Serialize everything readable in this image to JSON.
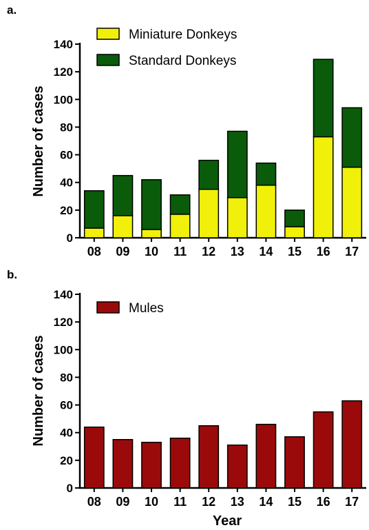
{
  "chart_data": [
    {
      "panel_label": "a.",
      "type": "bar",
      "stacked": true,
      "categories": [
        "08",
        "09",
        "10",
        "11",
        "12",
        "13",
        "14",
        "15",
        "16",
        "17"
      ],
      "series": [
        {
          "name": "Miniature Donkeys",
          "values": [
            7,
            16,
            6,
            17,
            35,
            29,
            38,
            8,
            73,
            51
          ],
          "color": "#f0f00a"
        },
        {
          "name": "Standard Donkeys",
          "values": [
            27,
            29,
            36,
            14,
            21,
            48,
            16,
            12,
            56,
            43
          ],
          "color": "#0a5c0a"
        }
      ],
      "ylabel": "Number of cases",
      "xlabel": "",
      "ylim": [
        0,
        140
      ],
      "yticks": [
        0,
        20,
        40,
        60,
        80,
        100,
        120,
        140
      ],
      "legend": "top-left",
      "grid": false
    },
    {
      "panel_label": "b.",
      "type": "bar",
      "categories": [
        "08",
        "09",
        "10",
        "11",
        "12",
        "13",
        "14",
        "15",
        "16",
        "17"
      ],
      "series": [
        {
          "name": "Mules",
          "values": [
            44,
            35,
            33,
            36,
            45,
            31,
            46,
            37,
            55,
            63
          ],
          "color": "#9b0a0a"
        }
      ],
      "ylabel": "Number of cases",
      "xlabel": "Year",
      "ylim": [
        0,
        140
      ],
      "yticks": [
        0,
        20,
        40,
        60,
        80,
        100,
        120,
        140
      ],
      "legend": "top-left",
      "grid": false
    }
  ]
}
